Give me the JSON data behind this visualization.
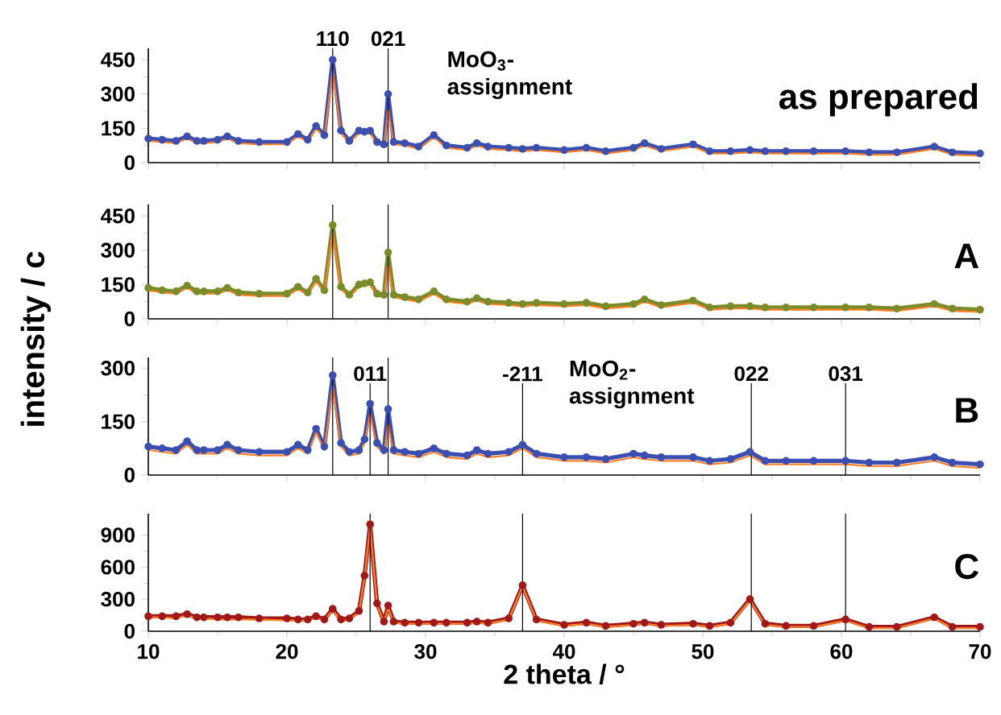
{
  "chart_data": [
    {
      "type": "line",
      "title": "as prepared",
      "annotations": [
        "MoO$_{3}$- assignment",
        "110",
        "021"
      ],
      "xlim": [
        10,
        70
      ],
      "xticks": [
        10,
        20,
        30,
        40,
        50,
        60,
        70
      ],
      "ylim": [
        0,
        500
      ],
      "yticks": [
        0,
        150,
        300,
        450
      ],
      "tick_labels": "y",
      "x": [
        10,
        11,
        12,
        12.8,
        13.5,
        14,
        15,
        15.7,
        16.5,
        18,
        20,
        20.8,
        21.5,
        22.1,
        22.7,
        23.3,
        23.9,
        24.5,
        25.2,
        25.6,
        26.0,
        26.5,
        27.0,
        27.3,
        27.7,
        28.5,
        29.5,
        30.6,
        31.5,
        33,
        33.7,
        34.5,
        36,
        37,
        38,
        40,
        41.6,
        43,
        45,
        45.8,
        47,
        49.3,
        50.5,
        52,
        53.4,
        54.5,
        56,
        58,
        60.3,
        62,
        64,
        66.7,
        68,
        70
      ],
      "series": [
        {
          "color": "#3a4fb0",
          "marker": "circle",
          "values": [
            105,
            100,
            95,
            115,
            95,
            95,
            100,
            115,
            95,
            90,
            90,
            125,
            100,
            160,
            120,
            450,
            140,
            95,
            140,
            135,
            140,
            90,
            80,
            300,
            90,
            85,
            70,
            120,
            75,
            65,
            85,
            70,
            65,
            60,
            65,
            55,
            65,
            50,
            65,
            85,
            60,
            80,
            50,
            50,
            55,
            50,
            50,
            50,
            50,
            45,
            45,
            70,
            45,
            40
          ]
        },
        {
          "color": "#ff7f27",
          "marker": "none",
          "values": [
            95,
            90,
            85,
            105,
            85,
            85,
            90,
            105,
            85,
            80,
            80,
            115,
            90,
            150,
            110,
            400,
            130,
            85,
            130,
            125,
            130,
            80,
            70,
            230,
            80,
            75,
            60,
            110,
            65,
            55,
            75,
            60,
            55,
            50,
            55,
            45,
            55,
            40,
            55,
            75,
            50,
            70,
            40,
            40,
            45,
            40,
            40,
            40,
            40,
            35,
            35,
            60,
            35,
            30
          ]
        }
      ],
      "ref_lines": [
        {
          "axis": "x",
          "value": 23.3
        },
        {
          "axis": "x",
          "value": 27.3
        }
      ]
    },
    {
      "type": "line",
      "title": "A",
      "ylabel": "intensity / c",
      "xlim": [
        10,
        70
      ],
      "xticks": [
        10,
        20,
        30,
        40,
        50,
        60,
        70
      ],
      "ylim": [
        0,
        500
      ],
      "yticks": [
        0,
        150,
        300,
        450
      ],
      "tick_labels": "y",
      "x": [
        10,
        11,
        12,
        12.8,
        13.5,
        14,
        15,
        15.7,
        16.5,
        18,
        20,
        20.8,
        21.5,
        22.1,
        22.7,
        23.3,
        23.9,
        24.5,
        25.2,
        25.6,
        26.0,
        26.5,
        27.0,
        27.3,
        27.7,
        28.5,
        29.5,
        30.6,
        31.5,
        33,
        33.7,
        34.5,
        36,
        37,
        38,
        40,
        41.6,
        43,
        45,
        45.8,
        47,
        49.3,
        50.5,
        52,
        53.4,
        54.5,
        56,
        58,
        60.3,
        62,
        64,
        66.7,
        68,
        70
      ],
      "series": [
        {
          "color": "#7a8c2a",
          "marker": "circle",
          "values": [
            135,
            125,
            120,
            145,
            120,
            120,
            120,
            135,
            115,
            110,
            110,
            140,
            115,
            175,
            125,
            410,
            140,
            105,
            150,
            155,
            160,
            110,
            105,
            290,
            105,
            95,
            85,
            120,
            85,
            75,
            90,
            75,
            70,
            65,
            70,
            65,
            70,
            55,
            65,
            85,
            60,
            80,
            50,
            55,
            55,
            50,
            50,
            50,
            50,
            50,
            45,
            65,
            45,
            40
          ]
        },
        {
          "color": "#ff7f27",
          "marker": "none",
          "values": [
            125,
            115,
            110,
            135,
            110,
            110,
            110,
            125,
            105,
            100,
            100,
            130,
            105,
            165,
            115,
            380,
            130,
            95,
            140,
            145,
            150,
            100,
            95,
            230,
            95,
            85,
            75,
            110,
            75,
            65,
            80,
            65,
            60,
            55,
            60,
            55,
            60,
            45,
            55,
            75,
            50,
            70,
            40,
            45,
            45,
            40,
            40,
            40,
            40,
            40,
            35,
            55,
            35,
            30
          ]
        }
      ],
      "ref_lines": [
        {
          "axis": "x",
          "value": 23.3
        },
        {
          "axis": "x",
          "value": 27.3
        }
      ]
    },
    {
      "type": "line",
      "title": "B",
      "annotations": [
        "MoO$_{2}$- assignment",
        "011",
        "-211",
        "022",
        "031"
      ],
      "xlim": [
        10,
        70
      ],
      "xticks": [
        10,
        20,
        30,
        40,
        50,
        60,
        70
      ],
      "ylim": [
        0,
        330
      ],
      "yticks": [
        0,
        150,
        300
      ],
      "tick_labels": "y",
      "x": [
        10,
        11,
        12,
        12.8,
        13.5,
        14,
        15,
        15.7,
        16.5,
        18,
        20,
        20.8,
        21.5,
        22.1,
        22.7,
        23.3,
        23.9,
        24.5,
        25.2,
        25.6,
        26.0,
        26.5,
        27.0,
        27.3,
        27.7,
        28.5,
        29.5,
        30.6,
        31.5,
        33,
        33.7,
        34.5,
        36,
        37,
        38,
        40,
        41.6,
        43,
        45,
        45.8,
        47,
        49.3,
        50.5,
        52,
        53.4,
        54.5,
        56,
        58,
        60.3,
        62,
        64,
        66.7,
        68,
        70
      ],
      "series": [
        {
          "color": "#3a4fb0",
          "marker": "circle",
          "values": [
            80,
            75,
            70,
            95,
            70,
            70,
            70,
            85,
            70,
            65,
            65,
            85,
            70,
            130,
            80,
            280,
            90,
            65,
            70,
            100,
            200,
            90,
            70,
            185,
            70,
            65,
            60,
            75,
            60,
            55,
            70,
            60,
            65,
            85,
            60,
            50,
            50,
            45,
            60,
            55,
            50,
            50,
            40,
            45,
            65,
            40,
            40,
            40,
            40,
            35,
            35,
            50,
            35,
            30
          ]
        },
        {
          "color": "#ff7f27",
          "marker": "none",
          "values": [
            70,
            65,
            60,
            85,
            60,
            60,
            60,
            75,
            60,
            55,
            55,
            75,
            60,
            120,
            70,
            250,
            80,
            55,
            60,
            90,
            170,
            80,
            60,
            140,
            60,
            55,
            50,
            65,
            50,
            45,
            60,
            50,
            55,
            75,
            50,
            40,
            40,
            35,
            50,
            45,
            40,
            40,
            30,
            35,
            55,
            30,
            30,
            30,
            30,
            25,
            25,
            40,
            25,
            20
          ]
        }
      ],
      "ref_lines": [
        {
          "axis": "x",
          "value": 23.3
        },
        {
          "axis": "x",
          "value": 27.3
        },
        {
          "axis": "x",
          "value": 26.0
        },
        {
          "axis": "x",
          "value": 37.0
        },
        {
          "axis": "x",
          "value": 53.5
        },
        {
          "axis": "x",
          "value": 60.3
        }
      ]
    },
    {
      "type": "line",
      "title": "C",
      "xlabel": "2 theta / °",
      "xlim": [
        10,
        70
      ],
      "xticks": [
        10,
        20,
        30,
        40,
        50,
        60,
        70
      ],
      "ylim": [
        0,
        1100
      ],
      "yticks": [
        0,
        300,
        600,
        900
      ],
      "x": [
        10,
        11,
        12,
        12.8,
        13.5,
        14,
        15,
        15.7,
        16.5,
        18,
        20,
        20.8,
        21.5,
        22.1,
        22.7,
        23.3,
        23.9,
        24.5,
        25.2,
        25.6,
        26.0,
        26.5,
        27.0,
        27.3,
        27.7,
        28.5,
        29.5,
        30.6,
        31.5,
        33,
        33.7,
        34.5,
        36,
        37,
        38,
        40,
        41.6,
        43,
        45,
        45.8,
        47,
        49.3,
        50.5,
        52,
        53.4,
        54.5,
        56,
        58,
        60.3,
        62,
        64,
        66.7,
        68,
        70
      ],
      "series": [
        {
          "color": "#a01818",
          "marker": "circle",
          "values": [
            140,
            140,
            140,
            160,
            130,
            130,
            130,
            130,
            130,
            120,
            120,
            110,
            110,
            140,
            110,
            210,
            110,
            120,
            190,
            520,
            1000,
            260,
            90,
            240,
            90,
            80,
            80,
            80,
            80,
            80,
            90,
            80,
            120,
            430,
            110,
            60,
            80,
            50,
            70,
            80,
            60,
            70,
            50,
            80,
            300,
            70,
            50,
            50,
            110,
            40,
            40,
            130,
            40,
            40
          ]
        },
        {
          "color": "#ff7f27",
          "marker": "none",
          "values": [
            130,
            130,
            120,
            150,
            120,
            120,
            110,
            110,
            110,
            110,
            100,
            100,
            100,
            130,
            100,
            200,
            100,
            110,
            180,
            500,
            980,
            250,
            80,
            220,
            80,
            70,
            70,
            70,
            70,
            70,
            80,
            70,
            110,
            420,
            100,
            50,
            70,
            40,
            60,
            70,
            50,
            60,
            40,
            70,
            290,
            60,
            40,
            40,
            100,
            30,
            30,
            120,
            30,
            30
          ]
        }
      ],
      "ref_lines": [
        {
          "axis": "x",
          "value": 26.0
        },
        {
          "axis": "x",
          "value": 37.0
        },
        {
          "axis": "x",
          "value": 53.5
        },
        {
          "axis": "x",
          "value": 60.3
        }
      ]
    }
  ]
}
